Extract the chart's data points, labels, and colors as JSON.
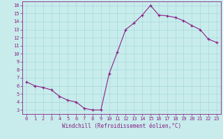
{
  "x": [
    0,
    1,
    2,
    3,
    4,
    5,
    6,
    7,
    8,
    9,
    10,
    11,
    12,
    13,
    14,
    15,
    16,
    17,
    18,
    19,
    20,
    21,
    22,
    23
  ],
  "y": [
    6.5,
    6.0,
    5.8,
    5.5,
    4.7,
    4.2,
    4.0,
    3.2,
    3.0,
    3.0,
    7.5,
    10.2,
    13.0,
    13.8,
    14.8,
    16.0,
    14.8,
    14.7,
    14.5,
    14.1,
    13.5,
    13.0,
    11.8,
    11.4
  ],
  "line_color": "#882288",
  "marker": "+",
  "bg_color": "#c8ecec",
  "grid_color": "#a8d8d8",
  "xlabel": "Windchill (Refroidissement éolien,°C)",
  "xlim": [
    -0.5,
    23.5
  ],
  "ylim": [
    2.5,
    16.5
  ],
  "yticks": [
    3,
    4,
    5,
    6,
    7,
    8,
    9,
    10,
    11,
    12,
    13,
    14,
    15,
    16
  ],
  "xticks": [
    0,
    1,
    2,
    3,
    4,
    5,
    6,
    7,
    8,
    9,
    10,
    11,
    12,
    13,
    14,
    15,
    16,
    17,
    18,
    19,
    20,
    21,
    22,
    23
  ],
  "axis_color": "#882288",
  "tick_color": "#882288",
  "label_color": "#882288",
  "font": "monospace",
  "tick_fontsize": 5.0,
  "xlabel_fontsize": 5.5
}
